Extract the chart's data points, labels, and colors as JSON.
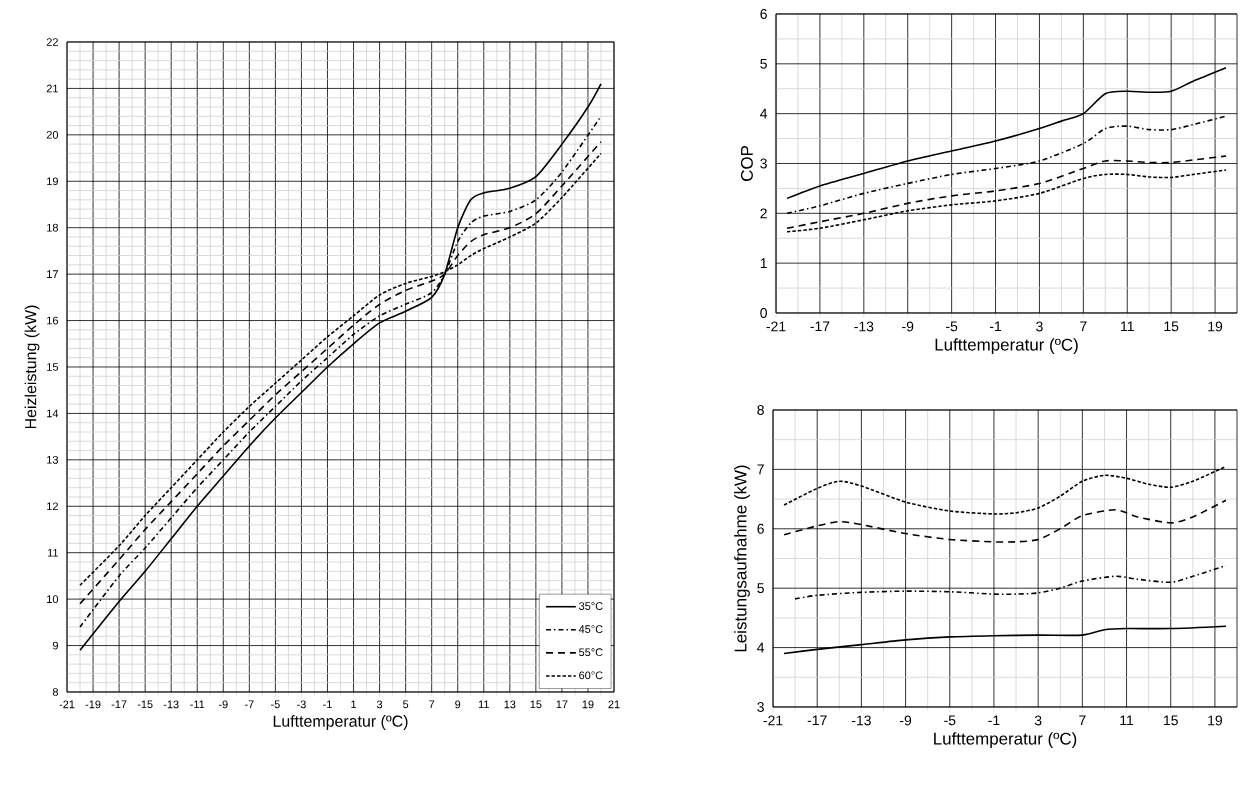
{
  "chart_data": [
    {
      "type": "line",
      "xlabel": "Lufttemperatur (ºC)",
      "ylabel": "Heizleistung (kW)",
      "xlim": [
        -21,
        21
      ],
      "ylim": [
        8,
        22
      ],
      "xticks": [
        -21,
        -19,
        -17,
        -15,
        -13,
        -11,
        -9,
        -7,
        -5,
        -3,
        -1,
        1,
        3,
        5,
        7,
        9,
        11,
        13,
        15,
        17,
        19,
        21
      ],
      "yticks": [
        8,
        9,
        10,
        11,
        12,
        13,
        14,
        15,
        16,
        17,
        18,
        19,
        20,
        21,
        22
      ],
      "grid": true,
      "legend": "bottom right",
      "series": [
        {
          "name": "35°C",
          "color": "#000000",
          "line_style": "solid",
          "x": [
            -20,
            -17,
            -15,
            -13,
            -11,
            -9,
            -7,
            -5,
            -3,
            -1,
            1,
            3,
            5,
            7,
            8,
            9,
            10,
            11,
            13,
            15,
            17,
            19,
            20
          ],
          "values": [
            8.9,
            9.95,
            10.6,
            11.3,
            12.0,
            12.65,
            13.3,
            13.9,
            14.45,
            15.0,
            15.5,
            15.95,
            16.2,
            16.5,
            17.0,
            18.0,
            18.6,
            18.75,
            18.85,
            19.1,
            19.8,
            20.6,
            21.1
          ]
        },
        {
          "name": "45°C",
          "color": "#000000",
          "line_style": "dashdot",
          "x": [
            -20,
            -17,
            -15,
            -13,
            -11,
            -9,
            -7,
            -5,
            -3,
            -1,
            1,
            3,
            5,
            7,
            8,
            9,
            10,
            11,
            13,
            15,
            17,
            20
          ],
          "values": [
            9.4,
            10.5,
            11.1,
            11.75,
            12.4,
            13.0,
            13.6,
            14.15,
            14.7,
            15.2,
            15.7,
            16.1,
            16.35,
            16.6,
            17.0,
            17.7,
            18.1,
            18.25,
            18.35,
            18.6,
            19.2,
            20.4
          ]
        },
        {
          "name": "55°C",
          "color": "#000000",
          "line_style": "dashed",
          "x": [
            -20,
            -17,
            -15,
            -13,
            -11,
            -9,
            -7,
            -5,
            -3,
            -1,
            1,
            3,
            5,
            7,
            8,
            9,
            10,
            11,
            13,
            15,
            17,
            20
          ],
          "values": [
            9.9,
            10.85,
            11.5,
            12.1,
            12.7,
            13.3,
            13.85,
            14.4,
            14.9,
            15.4,
            15.9,
            16.35,
            16.65,
            16.85,
            17.0,
            17.4,
            17.7,
            17.85,
            18.0,
            18.3,
            18.9,
            19.85
          ]
        },
        {
          "name": "60°C",
          "color": "#000000",
          "line_style": "dotted",
          "x": [
            -20,
            -17,
            -15,
            -13,
            -11,
            -9,
            -7,
            -5,
            -3,
            -1,
            1,
            3,
            5,
            7,
            8,
            9,
            10,
            11,
            13,
            15,
            17,
            20
          ],
          "values": [
            10.3,
            11.15,
            11.8,
            12.4,
            13.0,
            13.6,
            14.15,
            14.65,
            15.15,
            15.65,
            16.1,
            16.55,
            16.8,
            16.95,
            17.05,
            17.2,
            17.4,
            17.55,
            17.8,
            18.1,
            18.65,
            19.6
          ]
        }
      ]
    },
    {
      "type": "line",
      "xlabel": "Lufttemperatur (ºC)",
      "ylabel": "COP",
      "xlim": [
        -21,
        21
      ],
      "ylim": [
        0,
        6
      ],
      "xticks": [
        -21,
        -17,
        -13,
        -9,
        -5,
        -1,
        3,
        7,
        11,
        15,
        19
      ],
      "yticks": [
        0,
        1,
        2,
        3,
        4,
        5,
        6
      ],
      "grid": true,
      "series": [
        {
          "color": "#000000",
          "line_style": "solid",
          "x": [
            -20,
            -17,
            -13,
            -9,
            -5,
            -1,
            3,
            5,
            7,
            9,
            11,
            13,
            15,
            17,
            20
          ],
          "values": [
            2.3,
            2.55,
            2.8,
            3.05,
            3.25,
            3.45,
            3.7,
            3.85,
            4.0,
            4.4,
            4.45,
            4.43,
            4.45,
            4.65,
            4.92
          ]
        },
        {
          "color": "#000000",
          "line_style": "dashdot",
          "x": [
            -20,
            -17,
            -13,
            -9,
            -5,
            -1,
            3,
            7,
            9,
            11,
            13,
            15,
            17,
            20
          ],
          "values": [
            2.0,
            2.15,
            2.4,
            2.6,
            2.78,
            2.9,
            3.05,
            3.4,
            3.7,
            3.75,
            3.68,
            3.68,
            3.78,
            3.95
          ]
        },
        {
          "color": "#000000",
          "line_style": "dashed",
          "x": [
            -20,
            -17,
            -13,
            -9,
            -5,
            -1,
            3,
            7,
            9,
            11,
            13,
            15,
            17,
            20
          ],
          "values": [
            1.7,
            1.83,
            2.0,
            2.2,
            2.35,
            2.45,
            2.6,
            2.9,
            3.05,
            3.05,
            3.02,
            3.02,
            3.07,
            3.15
          ]
        },
        {
          "color": "#000000",
          "line_style": "dotted",
          "x": [
            -20,
            -17,
            -13,
            -9,
            -5,
            -1,
            3,
            7,
            9,
            11,
            13,
            15,
            17,
            20
          ],
          "values": [
            1.63,
            1.7,
            1.87,
            2.05,
            2.17,
            2.25,
            2.4,
            2.7,
            2.78,
            2.78,
            2.73,
            2.72,
            2.78,
            2.87
          ]
        }
      ]
    },
    {
      "type": "line",
      "xlabel": "Lufttemperatur (ºC)",
      "ylabel": "Leistungsaufnahme (kW)",
      "xlim": [
        -21,
        21
      ],
      "ylim": [
        3,
        8
      ],
      "xticks": [
        -21,
        -17,
        -13,
        -9,
        -5,
        -1,
        3,
        7,
        11,
        15,
        19
      ],
      "yticks": [
        3,
        4,
        5,
        6,
        7,
        8
      ],
      "grid": true,
      "series": [
        {
          "color": "#000000",
          "line_style": "solid",
          "x": [
            -20,
            -17,
            -13,
            -9,
            -5,
            -1,
            3,
            7,
            9,
            11,
            15,
            20
          ],
          "values": [
            3.9,
            3.97,
            4.05,
            4.13,
            4.18,
            4.2,
            4.21,
            4.21,
            4.3,
            4.32,
            4.32,
            4.36
          ]
        },
        {
          "color": "#000000",
          "line_style": "dashdot",
          "x": [
            -19,
            -17,
            -13,
            -9,
            -5,
            -1,
            1,
            3,
            5,
            7,
            10,
            12,
            15,
            17,
            20
          ],
          "values": [
            4.82,
            4.88,
            4.93,
            4.95,
            4.94,
            4.9,
            4.9,
            4.92,
            5.0,
            5.12,
            5.2,
            5.15,
            5.1,
            5.2,
            5.38
          ]
        },
        {
          "color": "#000000",
          "line_style": "dashed",
          "x": [
            -20,
            -17,
            -15,
            -13,
            -9,
            -5,
            -1,
            1,
            3,
            5,
            7,
            10,
            12,
            15,
            17,
            20
          ],
          "values": [
            5.9,
            6.05,
            6.12,
            6.07,
            5.92,
            5.82,
            5.78,
            5.78,
            5.82,
            6.0,
            6.22,
            6.32,
            6.2,
            6.1,
            6.2,
            6.48
          ]
        },
        {
          "color": "#000000",
          "line_style": "dotted",
          "x": [
            -20,
            -17,
            -15,
            -13,
            -9,
            -5,
            -1,
            1,
            3,
            5,
            7,
            9,
            11,
            13,
            15,
            17,
            20
          ],
          "values": [
            6.4,
            6.68,
            6.8,
            6.72,
            6.45,
            6.3,
            6.25,
            6.27,
            6.35,
            6.55,
            6.8,
            6.9,
            6.85,
            6.75,
            6.7,
            6.8,
            7.05
          ]
        }
      ]
    }
  ]
}
